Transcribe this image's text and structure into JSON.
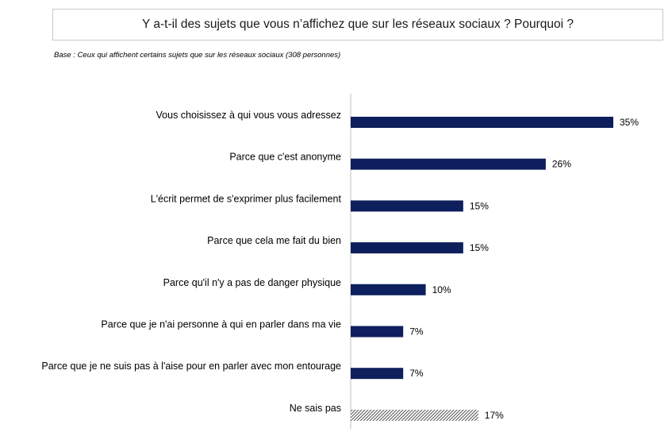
{
  "header": {
    "title": "Y a-t-il des sujets que vous n’affichez que sur les réseaux sociaux ? Pourquoi ?",
    "base_note": "Base : Ceux qui affichent certains sujets que sur les réseaux sociaux (308 personnes)"
  },
  "chart_data": {
    "type": "bar",
    "orientation": "horizontal",
    "title": "Y a-t-il des sujets que vous n’affichez que sur les réseaux sociaux ? Pourquoi ?",
    "categories": [
      "Vous choisissez à qui vous vous adressez",
      "Parce que c'est anonyme",
      "L'écrit permet de s'exprimer plus facilement",
      "Parce que cela me fait du bien",
      "Parce qu'il n'y a pas de danger physique",
      "Parce que je n'ai personne à qui en parler dans ma vie",
      "Parce que je ne suis pas à l'aise pour en parler avec mon entourage",
      "Ne sais pas"
    ],
    "values": [
      35,
      26,
      15,
      15,
      10,
      7,
      7,
      17
    ],
    "value_labels": [
      "35%",
      "26%",
      "15%",
      "15%",
      "10%",
      "7%",
      "7%",
      "17%"
    ],
    "bar_styles": [
      "solid",
      "solid",
      "solid",
      "solid",
      "solid",
      "solid",
      "solid",
      "hatched"
    ],
    "colors": {
      "bar": "#0d1f5c",
      "hatch": "#555555",
      "axis": "#bfbfbf"
    },
    "xlim": [
      0,
      35
    ],
    "grid": false,
    "legend": "none"
  }
}
